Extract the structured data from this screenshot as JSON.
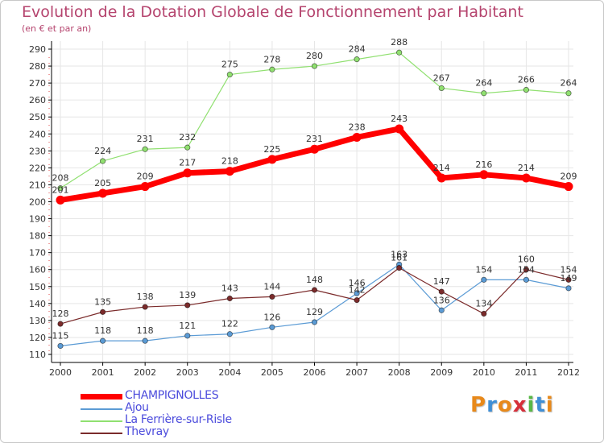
{
  "chart_title": "Evolution de la Dotation Globale de Fonctionnement par Habitant",
  "chart_subtitle": "(en € et par an)",
  "logo_text": "Proxiti",
  "colors": {
    "title": "#b5446e",
    "legend_text": "#4b4bdc",
    "grid": "#e6e6e6"
  },
  "chart_data": {
    "type": "line",
    "title": "Evolution de la Dotation Globale de Fonctionnement par Habitant",
    "subtitle": "(en € et par an)",
    "x": [
      "2000",
      "2001",
      "2002",
      "2003",
      "2004",
      "2005",
      "2006",
      "2007",
      "2008",
      "2009",
      "2010",
      "2011",
      "2012"
    ],
    "ylim": [
      110,
      290
    ],
    "yticks": [
      110,
      120,
      130,
      140,
      150,
      160,
      170,
      180,
      190,
      200,
      210,
      220,
      230,
      240,
      250,
      260,
      270,
      280,
      290
    ],
    "grid": true,
    "legend_position": "bottom-left",
    "series": [
      {
        "name": "CHAMPIGNOLLES",
        "color": "#ff0000",
        "values": [
          201,
          205,
          209,
          217,
          218,
          225,
          231,
          238,
          243,
          214,
          216,
          214,
          209
        ]
      },
      {
        "name": "Ajou",
        "color": "#5b9bd5",
        "values": [
          115,
          118,
          118,
          121,
          122,
          126,
          129,
          146,
          163,
          136,
          154,
          154,
          149
        ]
      },
      {
        "name": "La Ferrière-sur-Risle",
        "color": "#90e070",
        "values": [
          208,
          224,
          231,
          232,
          275,
          278,
          280,
          284,
          288,
          267,
          264,
          266,
          264
        ]
      },
      {
        "name": "Thevray",
        "color": "#7b2b2b",
        "values": [
          128,
          135,
          138,
          139,
          143,
          144,
          148,
          142,
          161,
          147,
          134,
          160,
          154
        ]
      }
    ]
  }
}
